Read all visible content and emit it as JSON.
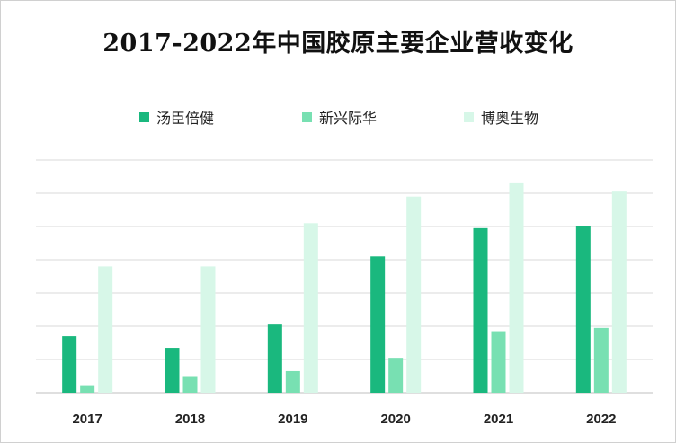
{
  "chart_data": {
    "type": "bar",
    "title": "2017-2022年中国胶原主要企业营收变化",
    "categories": [
      "2017",
      "2018",
      "2019",
      "2020",
      "2021",
      "2022"
    ],
    "series": [
      {
        "name": "汤臣倍健",
        "color": "#1ab87e",
        "values": [
          17,
          13.5,
          20.5,
          41,
          49.5,
          50
        ]
      },
      {
        "name": "新兴际华",
        "color": "#78e0b2",
        "values": [
          2,
          5,
          6.5,
          10.5,
          18.5,
          19.5
        ]
      },
      {
        "name": "博奥生物",
        "color": "#d7f7e8",
        "values": [
          38,
          38,
          51,
          59,
          63,
          60.5
        ]
      }
    ],
    "ylim": [
      0,
      70
    ],
    "grid": true,
    "legend_position": "top"
  }
}
